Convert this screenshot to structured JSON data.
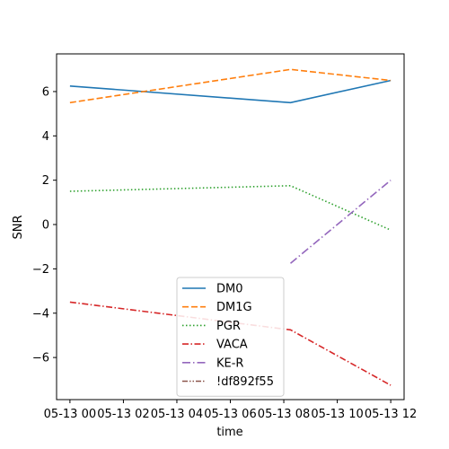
{
  "chart_data": {
    "type": "line",
    "title": "",
    "xlabel": "time",
    "ylabel": "SNR",
    "x_ticks": [
      "05-13 00",
      "05-13 02",
      "05-13 04",
      "05-13 06",
      "05-13 08",
      "05-13 10",
      "05-13 12"
    ],
    "xlim": [
      "05-13 00:00",
      "05-13 12:30"
    ],
    "ylim": [
      -7.9,
      7.7
    ],
    "y_ticks": [
      -6,
      -4,
      -2,
      0,
      2,
      4,
      6
    ],
    "grid": false,
    "legend_position": "lower center",
    "series": [
      {
        "name": "DM0",
        "color": "#1f77b4",
        "dash": "solid",
        "points": [
          [
            "05-13 00:00",
            6.25
          ],
          [
            "05-13 08:15",
            5.5
          ],
          [
            "05-13 12:00",
            6.5
          ]
        ]
      },
      {
        "name": "DM1G",
        "color": "#ff7f0e",
        "dash": "dashed",
        "points": [
          [
            "05-13 00:00",
            5.5
          ],
          [
            "05-13 08:15",
            7.0
          ],
          [
            "05-13 12:00",
            6.5
          ]
        ]
      },
      {
        "name": "PGR",
        "color": "#2ca02c",
        "dash": "dotted",
        "points": [
          [
            "05-13 00:00",
            1.5
          ],
          [
            "05-13 08:15",
            1.75
          ],
          [
            "05-13 12:00",
            -0.25
          ]
        ]
      },
      {
        "name": "VACA",
        "color": "#d62728",
        "dash": "dashdot",
        "points": [
          [
            "05-13 00:00",
            -3.5
          ],
          [
            "05-13 08:15",
            -4.75
          ],
          [
            "05-13 12:00",
            -7.25
          ]
        ]
      },
      {
        "name": "KE-R",
        "color": "#9467bd",
        "dash": "dashdot2",
        "points": [
          [
            "05-13 08:15",
            -1.75
          ],
          [
            "05-13 12:00",
            2.0
          ]
        ]
      },
      {
        "name": "!df892f55",
        "color": "#8c564b",
        "dash": "dashdotdot",
        "points": []
      }
    ]
  }
}
